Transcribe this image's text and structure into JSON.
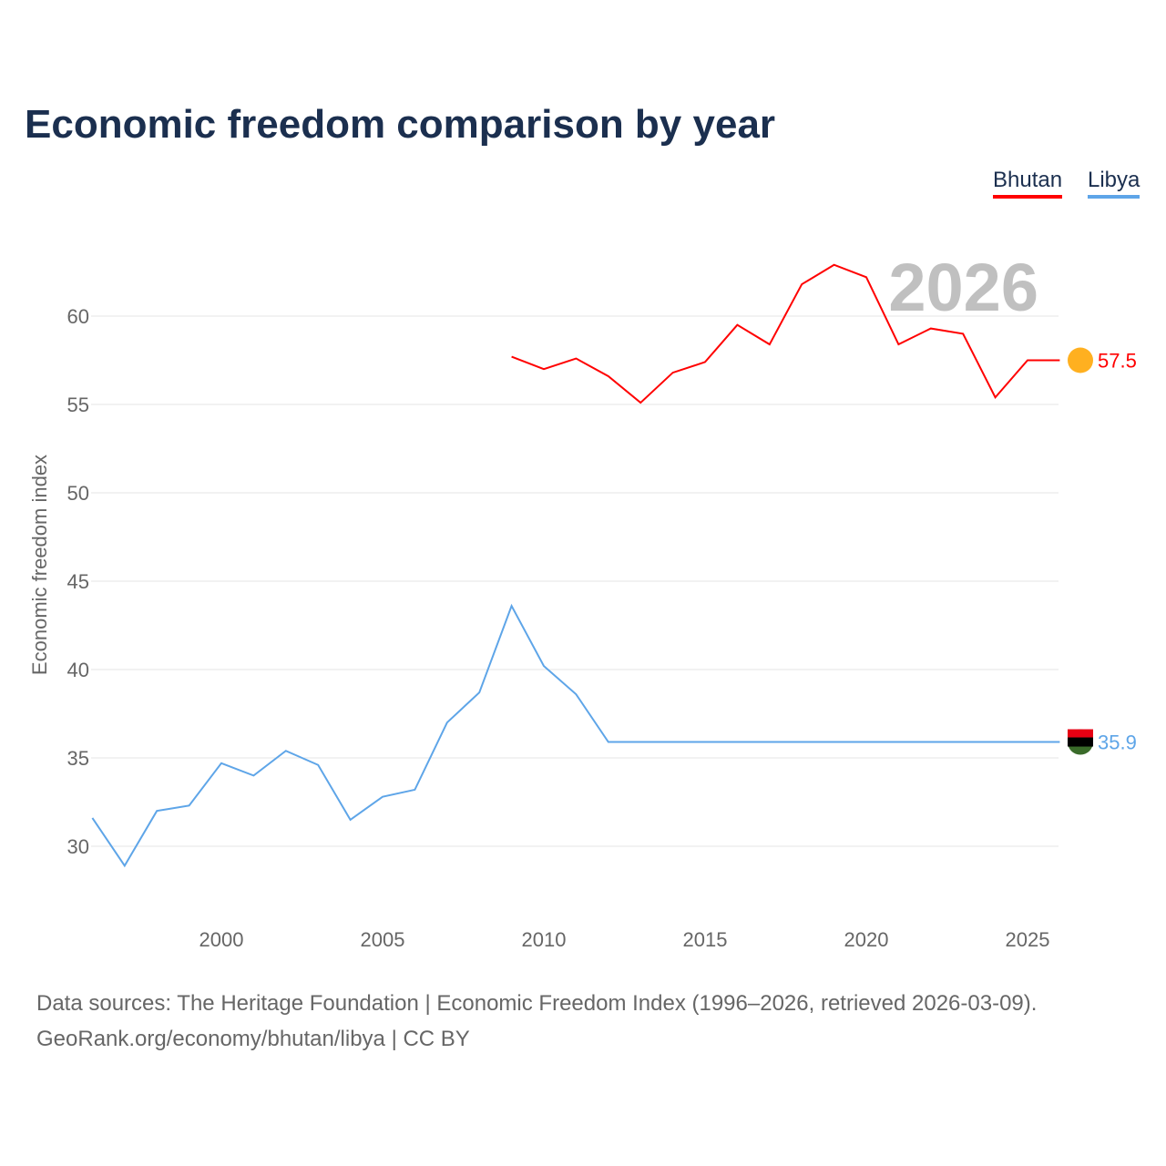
{
  "title": "Economic freedom comparison by year",
  "footer": {
    "line1": "Data sources: The Heritage Foundation | Economic Freedom Index (1996–2026, retrieved 2026-03-09).",
    "line2": "GeoRank.org/economy/bhutan/libya | CC BY"
  },
  "chart_data": {
    "type": "line",
    "title": "Economic freedom comparison by year",
    "xlabel": "",
    "ylabel": "Economic freedom index",
    "xlim": [
      1996,
      2026
    ],
    "ylim": [
      26,
      65
    ],
    "xticks": [
      2000,
      2005,
      2010,
      2015,
      2020,
      2025
    ],
    "yticks": [
      30,
      35,
      40,
      45,
      50,
      55,
      60
    ],
    "year_label": "2026",
    "legend_position": "top-right",
    "series": [
      {
        "name": "Bhutan",
        "color": "#ff0000",
        "end_label": "57.5",
        "x": [
          2009,
          2010,
          2011,
          2012,
          2013,
          2014,
          2015,
          2016,
          2017,
          2018,
          2019,
          2020,
          2021,
          2022,
          2023,
          2024,
          2025,
          2026
        ],
        "values": [
          57.7,
          57.0,
          57.6,
          56.6,
          55.1,
          56.8,
          57.4,
          59.5,
          58.4,
          61.8,
          62.9,
          62.2,
          58.4,
          59.3,
          59.0,
          55.4,
          57.5,
          57.5
        ]
      },
      {
        "name": "Libya",
        "color": "#5ea5e8",
        "end_label": "35.9",
        "x": [
          1996,
          1997,
          1998,
          1999,
          2000,
          2001,
          2002,
          2003,
          2004,
          2005,
          2006,
          2007,
          2008,
          2009,
          2010,
          2011,
          2012,
          2013,
          2014,
          2015,
          2016,
          2017,
          2018,
          2019,
          2020,
          2021,
          2022,
          2023,
          2024,
          2025,
          2026
        ],
        "values": [
          31.6,
          28.9,
          32.0,
          32.3,
          34.7,
          34.0,
          35.4,
          34.6,
          31.5,
          32.8,
          33.2,
          37.0,
          38.7,
          43.6,
          40.2,
          38.6,
          35.9,
          35.9,
          35.9,
          35.9,
          35.9,
          35.9,
          35.9,
          35.9,
          35.9,
          35.9,
          35.9,
          35.9,
          35.9,
          35.9,
          35.9
        ]
      }
    ]
  }
}
